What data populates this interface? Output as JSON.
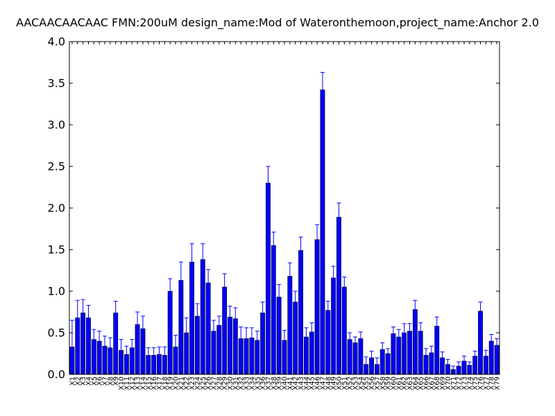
{
  "chart_data": {
    "type": "bar",
    "title": "AACAACAACAAC  FMN:200uM  design_name:Mod of Wateronthemoon,project_name:Anchor 2.0",
    "xlabel": "",
    "ylabel": "",
    "ylim": [
      0,
      4.0
    ],
    "yticks": [
      "0.0",
      "0.5",
      "1.0",
      "1.5",
      "2.0",
      "2.5",
      "3.0",
      "3.5",
      "4.0"
    ],
    "grid": false,
    "colors": {
      "bar": "#0000ff",
      "bar_edge": "#000000",
      "error": "#0000ff",
      "axes": "#000000"
    },
    "categories": [
      "X1",
      "X2",
      "X3",
      "X4",
      "X5",
      "X6",
      "X7",
      "X8",
      "X9",
      "X10",
      "X11",
      "X12",
      "X13",
      "X14",
      "X15",
      "X16",
      "X17",
      "X18",
      "X19",
      "X20",
      "X21",
      "X22",
      "X23",
      "X24",
      "X25",
      "X26",
      "X27",
      "X28",
      "X29",
      "X30",
      "X31",
      "X32",
      "X33",
      "X34",
      "X35",
      "X36",
      "X37",
      "X38",
      "X39",
      "X40",
      "X41",
      "X42",
      "X43",
      "X44",
      "X45",
      "X46",
      "X47",
      "X48",
      "X49",
      "X50",
      "X51",
      "X52",
      "X53",
      "X54",
      "X55",
      "X56",
      "X57",
      "X58",
      "X59",
      "X60",
      "X61",
      "X62",
      "X63",
      "X64",
      "X65",
      "X66",
      "X67",
      "X68",
      "X69",
      "X70",
      "X71",
      "X72",
      "X73",
      "X74",
      "X75",
      "X76",
      "X77",
      "X78",
      "X79"
    ],
    "values": [
      0.33,
      0.68,
      0.74,
      0.68,
      0.42,
      0.4,
      0.34,
      0.32,
      0.74,
      0.29,
      0.24,
      0.32,
      0.6,
      0.55,
      0.23,
      0.23,
      0.24,
      0.23,
      1.0,
      0.33,
      1.13,
      0.5,
      1.35,
      0.7,
      1.38,
      1.1,
      0.52,
      0.59,
      1.05,
      0.69,
      0.67,
      0.43,
      0.43,
      0.44,
      0.41,
      0.74,
      2.3,
      1.55,
      0.93,
      0.41,
      1.18,
      0.87,
      1.49,
      0.45,
      0.51,
      1.62,
      3.42,
      0.77,
      1.16,
      1.89,
      1.05,
      0.42,
      0.38,
      0.43,
      0.12,
      0.2,
      0.12,
      0.3,
      0.25,
      0.49,
      0.45,
      0.5,
      0.52,
      0.78,
      0.52,
      0.23,
      0.26,
      0.58,
      0.2,
      0.12,
      0.06,
      0.1,
      0.16,
      0.11,
      0.22,
      0.76,
      0.22,
      0.4,
      0.35
    ],
    "errors": [
      0.32,
      0.21,
      0.16,
      0.15,
      0.12,
      0.12,
      0.12,
      0.12,
      0.14,
      0.13,
      0.1,
      0.1,
      0.15,
      0.15,
      0.09,
      0.09,
      0.09,
      0.1,
      0.15,
      0.14,
      0.22,
      0.18,
      0.22,
      0.15,
      0.19,
      0.16,
      0.13,
      0.11,
      0.16,
      0.13,
      0.13,
      0.14,
      0.13,
      0.12,
      0.11,
      0.13,
      0.2,
      0.16,
      0.15,
      0.12,
      0.16,
      0.13,
      0.16,
      0.11,
      0.11,
      0.18,
      0.21,
      0.11,
      0.14,
      0.17,
      0.12,
      0.08,
      0.07,
      0.08,
      0.09,
      0.08,
      0.08,
      0.08,
      0.06,
      0.08,
      0.09,
      0.11,
      0.09,
      0.11,
      0.1,
      0.08,
      0.08,
      0.11,
      0.07,
      0.06,
      0.04,
      0.05,
      0.06,
      0.04,
      0.06,
      0.11,
      0.07,
      0.08,
      0.08
    ]
  }
}
